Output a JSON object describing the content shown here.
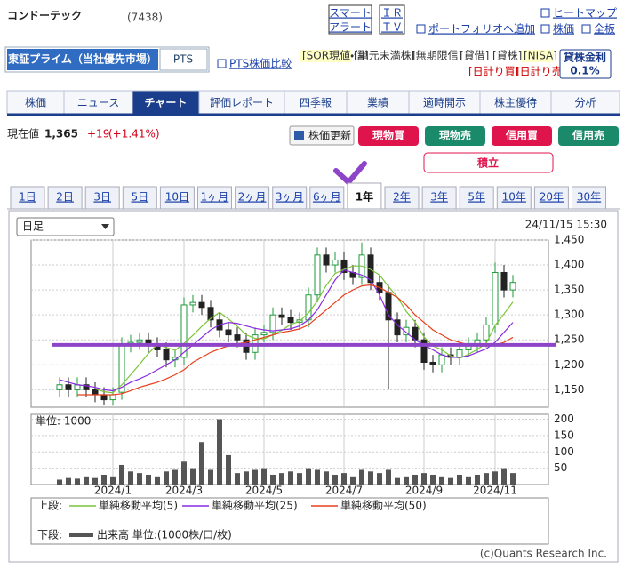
{
  "header": {
    "name": "コンドーテック",
    "code": "(7438)",
    "alert": [
      "スマート",
      "アラート"
    ],
    "irtv": [
      "ＩＲ",
      "ＴＶ"
    ],
    "links": [
      "ヒートマップ",
      "ポートフォリオへ追加",
      "株価",
      "全板"
    ]
  },
  "market": {
    "tabs": [
      "東証プライム（当社優先市場）",
      "PTS"
    ],
    "pts_compare": "PTS株価比較",
    "tags": [
      "[SOR現値・信]",
      "[単元未満株]",
      "[無期限信]",
      "[貸借]",
      "[貸株]",
      "[NISA]",
      "[日計り買]",
      "[日計り売]"
    ],
    "lending_rate": {
      "label": "貸株金利",
      "value": "0.1%"
    }
  },
  "nav": [
    "株価",
    "ニュース",
    "チャート",
    "評価レポート",
    "四季報",
    "業績",
    "適時開示",
    "株主優待",
    "分析"
  ],
  "quote": {
    "label": "現在値",
    "price": "1,365",
    "change": "+19",
    "change_pct": "(+1.41%)"
  },
  "buttons": {
    "refresh": "株価更新",
    "orders": [
      "現物買",
      "現物売",
      "信用買",
      "信用売"
    ],
    "accumulate": "積立"
  },
  "periods": [
    "1日",
    "2日",
    "3日",
    "5日",
    "10日",
    "1ヶ月",
    "2ヶ月",
    "3ヶ月",
    "6ヶ月",
    "1年",
    "2年",
    "3年",
    "5年",
    "10年",
    "20年",
    "30年"
  ],
  "chart_data": {
    "type": "candlestick",
    "interval": "日足",
    "timestamp": "24/11/15 15:30",
    "categories": [
      null,
      null,
      null,
      null,
      null,
      null,
      "2024/1",
      null,
      null,
      null,
      null,
      null,
      null,
      null,
      "2024/3",
      null,
      null,
      null,
      null,
      null,
      null,
      null,
      null,
      "2024/5",
      null,
      null,
      null,
      null,
      null,
      null,
      null,
      null,
      "2024/7",
      null,
      null,
      null,
      null,
      null,
      null,
      null,
      null,
      "2024/9",
      null,
      null,
      null,
      null,
      null,
      null,
      null,
      "2024/11",
      null,
      null
    ],
    "open": [
      1150,
      1160,
      1150,
      1160,
      1150,
      1140,
      1130,
      1145,
      1240,
      1245,
      1250,
      1240,
      1230,
      1210,
      1215,
      1320,
      1325,
      1315,
      1290,
      1270,
      1260,
      1250,
      1225,
      1260,
      1265,
      1300,
      1295,
      1285,
      1290,
      1340,
      1420,
      1400,
      1410,
      1385,
      1375,
      1420,
      1365,
      1345,
      1290,
      1260,
      1275,
      1250,
      1205,
      1200,
      1220,
      1215,
      1230,
      1240,
      1250,
      1280,
      1385,
      1350
    ],
    "high": [
      1175,
      1175,
      1175,
      1175,
      1165,
      1155,
      1155,
      1255,
      1260,
      1265,
      1265,
      1255,
      1245,
      1230,
      1335,
      1340,
      1340,
      1330,
      1305,
      1285,
      1275,
      1265,
      1275,
      1280,
      1315,
      1315,
      1310,
      1305,
      1355,
      1435,
      1435,
      1425,
      1425,
      1400,
      1445,
      1435,
      1380,
      1360,
      1305,
      1290,
      1290,
      1265,
      1220,
      1235,
      1235,
      1245,
      1255,
      1265,
      1295,
      1405,
      1400,
      1380
    ],
    "low": [
      1135,
      1135,
      1135,
      1135,
      1125,
      1120,
      1120,
      1130,
      1225,
      1230,
      1225,
      1215,
      1195,
      1195,
      1200,
      1305,
      1300,
      1275,
      1255,
      1245,
      1235,
      1210,
      1210,
      1245,
      1250,
      1280,
      1270,
      1270,
      1275,
      1325,
      1385,
      1385,
      1370,
      1360,
      1360,
      1350,
      1330,
      1150,
      1245,
      1245,
      1235,
      1190,
      1185,
      1185,
      1200,
      1200,
      1215,
      1225,
      1235,
      1265,
      1335,
      1335
    ],
    "close": [
      1160,
      1150,
      1160,
      1150,
      1140,
      1130,
      1140,
      1240,
      1245,
      1250,
      1240,
      1230,
      1210,
      1215,
      1320,
      1325,
      1315,
      1290,
      1270,
      1260,
      1250,
      1225,
      1260,
      1265,
      1300,
      1295,
      1285,
      1290,
      1340,
      1420,
      1400,
      1410,
      1385,
      1375,
      1420,
      1365,
      1345,
      1290,
      1260,
      1275,
      1250,
      1205,
      1200,
      1220,
      1215,
      1230,
      1240,
      1250,
      1280,
      1385,
      1350,
      1365
    ],
    "up_color": "#1f9a3a",
    "down_color": "#222222",
    "ylim": [
      1115,
      1450
    ],
    "yticks": [
      {
        "value": 1150,
        "label": "1,150"
      },
      {
        "value": 1200,
        "label": "1,200"
      },
      {
        "value": 1250,
        "label": "1,250"
      },
      {
        "value": 1300,
        "label": "1,300"
      },
      {
        "value": 1350,
        "label": "1,350"
      },
      {
        "value": 1400,
        "label": "1,400"
      },
      {
        "value": 1450,
        "label": "1,450"
      }
    ],
    "grid": true,
    "legend_upper": "上段:",
    "legend_lower": "下段:",
    "series": [
      {
        "name": "単純移動平均(5)",
        "color": "#7cc33a",
        "values": [
          null,
          null,
          null,
          null,
          1152,
          1146,
          1144,
          1160,
          1180,
          1201,
          1223,
          1241,
          1235,
          1229,
          1243,
          1259,
          1277,
          1293,
          1305,
          1292,
          1277,
          1260,
          1253,
          1252,
          1260,
          1269,
          1281,
          1287,
          1304,
          1328,
          1359,
          1383,
          1391,
          1398,
          1398,
          1391,
          1380,
          1357,
          1336,
          1307,
          1286,
          1256,
          1238,
          1230,
          1218,
          1213,
          1221,
          1231,
          1243,
          1279,
          1302,
          1326
        ]
      },
      {
        "name": "単純移動平均(25)",
        "color": "#8a2be2",
        "values": [
          1170,
          1165,
          1160,
          1158,
          1155,
          1150,
          1148,
          1155,
          1165,
          1172,
          1180,
          1190,
          1200,
          1210,
          1225,
          1240,
          1255,
          1270,
          1280,
          1285,
          1283,
          1278,
          1273,
          1270,
          1268,
          1270,
          1272,
          1278,
          1290,
          1310,
          1340,
          1370,
          1390,
          1385,
          1380,
          1370,
          1340,
          1300,
          1280,
          1265,
          1250,
          1240,
          1230,
          1220,
          1215,
          1215,
          1218,
          1225,
          1232,
          1245,
          1265,
          1285
        ]
      },
      {
        "name": "単純移動平均(50)",
        "color": "#e8401c",
        "values": [
          null,
          null,
          1140,
          1140,
          1140,
          1140,
          1140,
          1142,
          1148,
          1155,
          1160,
          1165,
          1172,
          1180,
          1190,
          1205,
          1215,
          1225,
          1232,
          1238,
          1242,
          1245,
          1250,
          1255,
          1260,
          1265,
          1268,
          1272,
          1280,
          1295,
          1310,
          1325,
          1340,
          1350,
          1358,
          1360,
          1355,
          1345,
          1335,
          1320,
          1300,
          1285,
          1270,
          1260,
          1250,
          1245,
          1240,
          1238,
          1238,
          1240,
          1245,
          1255
        ]
      }
    ],
    "annotation_line": {
      "value": 1240,
      "color": "#8e44c8"
    },
    "volume": {
      "unit_label": "単位: 1000",
      "name": "出来高 単位:(1000株/口/枚)",
      "color": "#555555",
      "values": [
        15,
        20,
        18,
        25,
        20,
        30,
        25,
        60,
        40,
        35,
        30,
        25,
        40,
        45,
        70,
        50,
        130,
        45,
        200,
        90,
        35,
        40,
        45,
        50,
        30,
        35,
        40,
        35,
        50,
        45,
        40,
        30,
        35,
        25,
        45,
        40,
        35,
        45,
        20,
        25,
        30,
        35,
        30,
        25,
        20,
        30,
        25,
        30,
        35,
        40,
        50,
        35
      ],
      "ylim": [
        0,
        215
      ],
      "yticks": [
        50,
        100,
        150,
        200
      ]
    },
    "copyright": "(c)Quants Research Inc."
  }
}
